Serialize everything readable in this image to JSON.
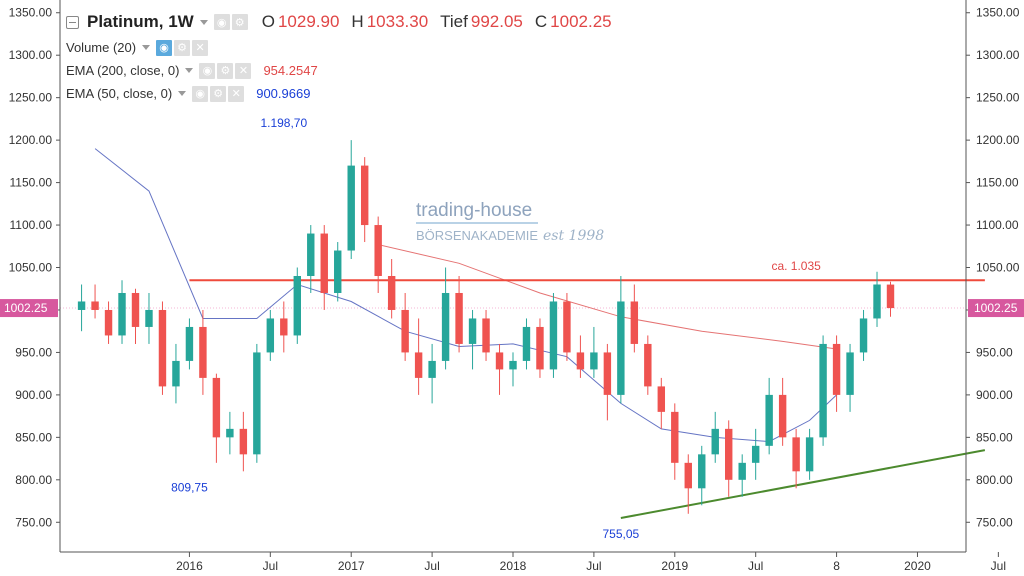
{
  "legend": {
    "symbol": "Platinum, 1W",
    "ohlc": [
      {
        "label": "O",
        "value": "1029.90"
      },
      {
        "label": "H",
        "value": "1033.30"
      },
      {
        "label": "Tief",
        "value": "992.05"
      },
      {
        "label": "C",
        "value": "1002.25"
      }
    ],
    "volume": "Volume (20)",
    "ema200": {
      "label": "EMA (200, close, 0)",
      "value": "954.2547"
    },
    "ema50": {
      "label": "EMA (50, close, 0)",
      "value": "900.9669"
    }
  },
  "watermark": {
    "line1": "trading-house",
    "line2": "BÖRSENAKADEMIE",
    "line3": "est 1998"
  },
  "colors": {
    "up": "#26a69a",
    "down": "#ef5350",
    "ema200": "#e57373",
    "ema50": "#3f51b5",
    "resistance": "#ef4a3c",
    "support": "#4c8a2e",
    "price_tag": "#d7589e"
  },
  "chart_data": {
    "type": "candlestick",
    "timeframe": "1W",
    "ylim": [
      715,
      1365
    ],
    "y_ticks": [
      "1350.00",
      "1300.00",
      "1250.00",
      "1200.00",
      "1150.00",
      "1100.00",
      "1050.00",
      "1000.00",
      "950.00",
      "900.00",
      "850.00",
      "800.00",
      "750.00"
    ],
    "x_ticks": [
      "2016",
      "Jul",
      "2017",
      "Jul",
      "2018",
      "Jul",
      "2019",
      "Jul",
      "8",
      "2020",
      "Jul"
    ],
    "last_price_label": "1002.25",
    "last_close": 1002.25,
    "annotations": [
      {
        "text": "1.198,70",
        "value": 1198.7,
        "date": "2016-08"
      },
      {
        "text": "809,75",
        "value": 809.75,
        "date": "2016-01"
      },
      {
        "text": "755,05",
        "value": 755.05,
        "date": "2018-09"
      },
      {
        "text": "ca. 1.035",
        "value": 1035
      }
    ],
    "resistance_line": {
      "value": 1035,
      "from": "2016-01",
      "to": "2020-12"
    },
    "support_line": {
      "from": {
        "date": "2018-09",
        "value": 755
      },
      "to": {
        "date": "2020-12",
        "value": 835
      }
    },
    "ema200": [
      {
        "date": "2017-03",
        "value": 1077
      },
      {
        "date": "2017-09",
        "value": 1055
      },
      {
        "date": "2018-03",
        "value": 1020
      },
      {
        "date": "2018-09",
        "value": 992
      },
      {
        "date": "2019-03",
        "value": 975
      },
      {
        "date": "2019-09",
        "value": 963
      },
      {
        "date": "2020-01",
        "value": 954
      }
    ],
    "ema50": [
      {
        "date": "2015-06",
        "value": 1190
      },
      {
        "date": "2015-10",
        "value": 1140
      },
      {
        "date": "2016-02",
        "value": 990
      },
      {
        "date": "2016-06",
        "value": 990
      },
      {
        "date": "2016-09",
        "value": 1030
      },
      {
        "date": "2017-01",
        "value": 1010
      },
      {
        "date": "2017-05",
        "value": 975
      },
      {
        "date": "2017-09",
        "value": 957
      },
      {
        "date": "2018-01",
        "value": 960
      },
      {
        "date": "2018-05",
        "value": 945
      },
      {
        "date": "2018-09",
        "value": 890
      },
      {
        "date": "2018-12",
        "value": 860
      },
      {
        "date": "2019-04",
        "value": 850
      },
      {
        "date": "2019-08",
        "value": 845
      },
      {
        "date": "2019-11",
        "value": 870
      },
      {
        "date": "2020-01",
        "value": 900
      }
    ],
    "candles": [
      {
        "date": "2015-05",
        "o": 1000,
        "h": 1030,
        "l": 975,
        "c": 1010
      },
      {
        "date": "2015-06",
        "o": 1010,
        "h": 1030,
        "l": 990,
        "c": 1000
      },
      {
        "date": "2015-07",
        "o": 1000,
        "h": 1010,
        "l": 960,
        "c": 970
      },
      {
        "date": "2015-08",
        "o": 970,
        "h": 1035,
        "l": 960,
        "c": 1020
      },
      {
        "date": "2015-09",
        "o": 1020,
        "h": 1025,
        "l": 960,
        "c": 980
      },
      {
        "date": "2015-10",
        "o": 980,
        "h": 1020,
        "l": 960,
        "c": 1000
      },
      {
        "date": "2015-11",
        "o": 1000,
        "h": 1010,
        "l": 900,
        "c": 910
      },
      {
        "date": "2015-12",
        "o": 910,
        "h": 960,
        "l": 890,
        "c": 940
      },
      {
        "date": "2016-01",
        "o": 940,
        "h": 990,
        "l": 930,
        "c": 980
      },
      {
        "date": "2016-02",
        "o": 980,
        "h": 1000,
        "l": 900,
        "c": 920
      },
      {
        "date": "2016-03",
        "o": 920,
        "h": 925,
        "l": 820,
        "c": 850
      },
      {
        "date": "2016-04",
        "o": 850,
        "h": 880,
        "l": 830,
        "c": 860
      },
      {
        "date": "2016-05",
        "o": 860,
        "h": 880,
        "l": 810,
        "c": 830
      },
      {
        "date": "2016-06",
        "o": 830,
        "h": 960,
        "l": 820,
        "c": 950
      },
      {
        "date": "2016-07",
        "o": 950,
        "h": 1000,
        "l": 940,
        "c": 990
      },
      {
        "date": "2016-08",
        "o": 990,
        "h": 1010,
        "l": 950,
        "c": 970
      },
      {
        "date": "2016-09",
        "o": 970,
        "h": 1050,
        "l": 960,
        "c": 1040
      },
      {
        "date": "2016-10",
        "o": 1040,
        "h": 1100,
        "l": 1020,
        "c": 1090
      },
      {
        "date": "2016-11",
        "o": 1090,
        "h": 1100,
        "l": 1000,
        "c": 1020
      },
      {
        "date": "2016-12",
        "o": 1020,
        "h": 1080,
        "l": 1010,
        "c": 1070
      },
      {
        "date": "2017-01",
        "o": 1070,
        "h": 1200,
        "l": 1060,
        "c": 1170
      },
      {
        "date": "2017-02",
        "o": 1170,
        "h": 1180,
        "l": 1080,
        "c": 1100
      },
      {
        "date": "2017-03",
        "o": 1100,
        "h": 1110,
        "l": 1020,
        "c": 1040
      },
      {
        "date": "2017-04",
        "o": 1040,
        "h": 1060,
        "l": 990,
        "c": 1000
      },
      {
        "date": "2017-05",
        "o": 1000,
        "h": 1020,
        "l": 940,
        "c": 950
      },
      {
        "date": "2017-06",
        "o": 950,
        "h": 990,
        "l": 900,
        "c": 920
      },
      {
        "date": "2017-07",
        "o": 920,
        "h": 960,
        "l": 890,
        "c": 940
      },
      {
        "date": "2017-08",
        "o": 940,
        "h": 1050,
        "l": 930,
        "c": 1020
      },
      {
        "date": "2017-09",
        "o": 1020,
        "h": 1040,
        "l": 950,
        "c": 960
      },
      {
        "date": "2017-10",
        "o": 960,
        "h": 1000,
        "l": 930,
        "c": 990
      },
      {
        "date": "2017-11",
        "o": 990,
        "h": 1000,
        "l": 940,
        "c": 950
      },
      {
        "date": "2017-12",
        "o": 950,
        "h": 960,
        "l": 900,
        "c": 930
      },
      {
        "date": "2018-01",
        "o": 930,
        "h": 950,
        "l": 910,
        "c": 940
      },
      {
        "date": "2018-02",
        "o": 940,
        "h": 990,
        "l": 930,
        "c": 980
      },
      {
        "date": "2018-03",
        "o": 980,
        "h": 990,
        "l": 920,
        "c": 930
      },
      {
        "date": "2018-04",
        "o": 930,
        "h": 1020,
        "l": 920,
        "c": 1010
      },
      {
        "date": "2018-05",
        "o": 1010,
        "h": 1020,
        "l": 940,
        "c": 950
      },
      {
        "date": "2018-06",
        "o": 950,
        "h": 970,
        "l": 920,
        "c": 930
      },
      {
        "date": "2018-07",
        "o": 930,
        "h": 980,
        "l": 920,
        "c": 950
      },
      {
        "date": "2018-08",
        "o": 950,
        "h": 960,
        "l": 870,
        "c": 900
      },
      {
        "date": "2018-09",
        "o": 900,
        "h": 1040,
        "l": 890,
        "c": 1010
      },
      {
        "date": "2018-10",
        "o": 1010,
        "h": 1030,
        "l": 950,
        "c": 960
      },
      {
        "date": "2018-11",
        "o": 960,
        "h": 970,
        "l": 900,
        "c": 910
      },
      {
        "date": "2018-12",
        "o": 910,
        "h": 920,
        "l": 860,
        "c": 880
      },
      {
        "date": "2019-01",
        "o": 880,
        "h": 890,
        "l": 800,
        "c": 820
      },
      {
        "date": "2019-02",
        "o": 820,
        "h": 830,
        "l": 760,
        "c": 790
      },
      {
        "date": "2019-03",
        "o": 790,
        "h": 840,
        "l": 770,
        "c": 830
      },
      {
        "date": "2019-04",
        "o": 830,
        "h": 880,
        "l": 820,
        "c": 860
      },
      {
        "date": "2019-05",
        "o": 860,
        "h": 870,
        "l": 780,
        "c": 800
      },
      {
        "date": "2019-06",
        "o": 800,
        "h": 830,
        "l": 780,
        "c": 820
      },
      {
        "date": "2019-07",
        "o": 820,
        "h": 860,
        "l": 800,
        "c": 840
      },
      {
        "date": "2019-08",
        "o": 840,
        "h": 920,
        "l": 830,
        "c": 900
      },
      {
        "date": "2019-09",
        "o": 900,
        "h": 920,
        "l": 840,
        "c": 850
      },
      {
        "date": "2019-10",
        "o": 850,
        "h": 860,
        "l": 790,
        "c": 810
      },
      {
        "date": "2019-11",
        "o": 810,
        "h": 860,
        "l": 800,
        "c": 850
      },
      {
        "date": "2019-12",
        "o": 850,
        "h": 970,
        "l": 840,
        "c": 960
      },
      {
        "date": "2020-01",
        "o": 960,
        "h": 970,
        "l": 880,
        "c": 900
      },
      {
        "date": "2020-02",
        "o": 900,
        "h": 960,
        "l": 880,
        "c": 950
      },
      {
        "date": "2020-03",
        "o": 950,
        "h": 1000,
        "l": 940,
        "c": 990
      },
      {
        "date": "2020-04",
        "o": 990,
        "h": 1045,
        "l": 980,
        "c": 1030
      },
      {
        "date": "2020-05",
        "o": 1029.9,
        "h": 1033.3,
        "l": 992.05,
        "c": 1002.25
      }
    ]
  }
}
